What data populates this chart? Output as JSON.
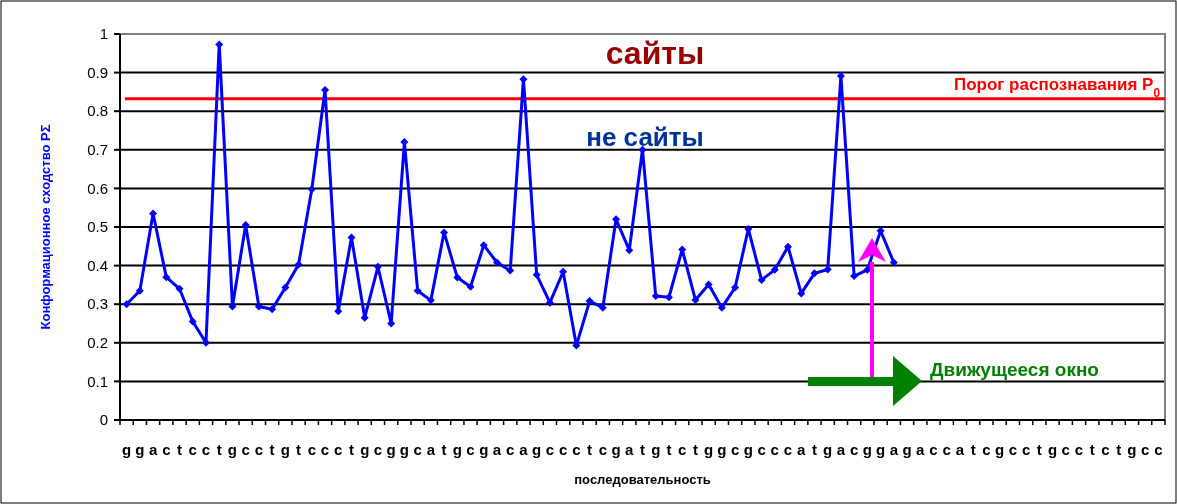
{
  "chart_data": {
    "type": "line",
    "ylabel": "Конформационное сходство PΣ",
    "xlabel": "последовательность",
    "categories": [
      "g",
      "g",
      "a",
      "c",
      "t",
      "c",
      "c",
      "t",
      "g",
      "c",
      "c",
      "t",
      "g",
      "t",
      "c",
      "c",
      "c",
      "t",
      "g",
      "c",
      "g",
      "g",
      "c",
      "a",
      "t",
      "g",
      "c",
      "g",
      "a",
      "c",
      "a",
      "g",
      "c",
      "c",
      "c",
      "t",
      "c",
      "g",
      "a",
      "t",
      "g",
      "t",
      "c",
      "t",
      "g",
      "g",
      "c",
      "g",
      "c",
      "c",
      "c",
      "a",
      "t",
      "g",
      "a",
      "c",
      "g",
      "g",
      "a",
      "g",
      "a",
      "c",
      "c",
      "a",
      "t",
      "c",
      "g",
      "c",
      "c",
      "t",
      "g",
      "c",
      "c",
      "t",
      "c",
      "t",
      "g",
      "c",
      "c"
    ],
    "series": [
      {
        "color": "#0000ff",
        "values": [
          0.3,
          0.335,
          0.535,
          0.37,
          0.34,
          0.255,
          0.2,
          0.973,
          0.294,
          0.505,
          0.294,
          0.287,
          0.343,
          0.403,
          0.598,
          0.855,
          0.282,
          0.473,
          0.265,
          0.397,
          0.25,
          0.72,
          0.335,
          0.31,
          0.486,
          0.369,
          0.345,
          0.453,
          0.408,
          0.387,
          0.883,
          0.376,
          0.304,
          0.384,
          0.193,
          0.308,
          0.291,
          0.52,
          0.44,
          0.7,
          0.321,
          0.318,
          0.442,
          0.311,
          0.351,
          0.291,
          0.343,
          0.495,
          0.363,
          0.389,
          0.449,
          0.328,
          0.38,
          0.39,
          0.891,
          0.373,
          0.389,
          0.49,
          0.408,
          null,
          null,
          null,
          null,
          null,
          null,
          null,
          null,
          null,
          null,
          null,
          null,
          null,
          null,
          null,
          null,
          null,
          null,
          null,
          null
        ]
      }
    ],
    "ylim": [
      0,
      1
    ],
    "yticks": [
      0,
      0.1,
      0.2,
      0.3,
      0.4,
      0.5,
      0.6,
      0.7,
      0.8,
      0.9,
      1
    ],
    "grid": "y",
    "marker": "diamond",
    "line_style": "solid",
    "ref_lines": [
      {
        "axis": "y",
        "value": 0.832,
        "label": "Порог распознавания P$_{0}$",
        "color": "#ff0000",
        "line_style": "solid"
      }
    ],
    "annotations": [
      "сайты",
      "не сайты",
      "Движущееся окно"
    ]
  }
}
